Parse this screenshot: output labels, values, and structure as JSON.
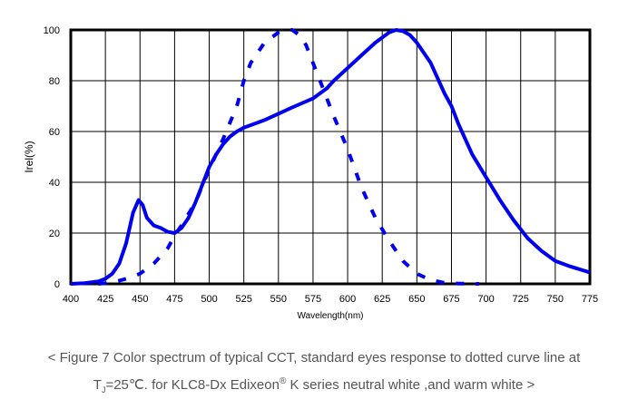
{
  "chart_data": {
    "type": "line",
    "xlabel": "Wavelength(nm)",
    "ylabel": "Irel(%)",
    "xlim": [
      400,
      775
    ],
    "ylim": [
      0,
      100
    ],
    "xticks": [
      400,
      425,
      450,
      475,
      500,
      525,
      550,
      575,
      600,
      625,
      650,
      675,
      700,
      725,
      750,
      775
    ],
    "yticks": [
      0,
      20,
      40,
      60,
      80,
      100
    ],
    "grid": true,
    "series": [
      {
        "name": "Spectrum",
        "style": "solid",
        "color": "#0000ee",
        "x": [
          400,
          410,
          420,
          425,
          430,
          435,
          440,
          445,
          449,
          452,
          455,
          460,
          465,
          470,
          475,
          480,
          485,
          490,
          495,
          500,
          505,
          510,
          515,
          520,
          525,
          530,
          540,
          550,
          560,
          575,
          585,
          590,
          600,
          610,
          620,
          630,
          635,
          640,
          645,
          650,
          660,
          670,
          675,
          680,
          690,
          700,
          710,
          720,
          730,
          740,
          750,
          760,
          775
        ],
        "y": [
          0,
          0.3,
          1,
          2,
          4,
          8,
          16,
          28,
          33,
          31,
          26,
          23,
          22,
          20.5,
          20,
          22,
          26,
          32,
          39,
          46,
          51,
          55,
          58,
          60,
          61.5,
          62.5,
          64.5,
          67,
          69.5,
          73,
          77,
          80,
          85,
          90,
          95,
          99,
          100,
          99.5,
          98,
          95,
          87,
          75,
          70,
          63,
          51,
          42,
          33,
          25,
          18,
          13,
          9,
          7,
          4.5
        ]
      },
      {
        "name": "Standard eye response",
        "style": "dashed",
        "color": "#0000ee",
        "x": [
          420,
          430,
          440,
          450,
          460,
          470,
          475,
          480,
          490,
          500,
          510,
          520,
          525,
          530,
          540,
          550,
          555,
          560,
          565,
          570,
          575,
          580,
          590,
          600,
          610,
          620,
          630,
          640,
          650,
          660,
          670,
          680,
          695
        ],
        "y": [
          0,
          0.5,
          2,
          4,
          8,
          14,
          19,
          23,
          32,
          45,
          57,
          70,
          80,
          87,
          95,
          99,
          100,
          100,
          98,
          94,
          87,
          80,
          66,
          53,
          38,
          26,
          17,
          9,
          4,
          1.5,
          0.4,
          0.1,
          0
        ]
      }
    ]
  },
  "caption": {
    "line1": "< Figure 7 Color spectrum of typical CCT, standard eyes response to dotted curve line at",
    "t": "T",
    "sub": "J",
    "line2a": "=25℃. for KLC8-Dx Edixeon",
    "reg": "®",
    "line2b": " K series neutral white ,and warm white >"
  }
}
